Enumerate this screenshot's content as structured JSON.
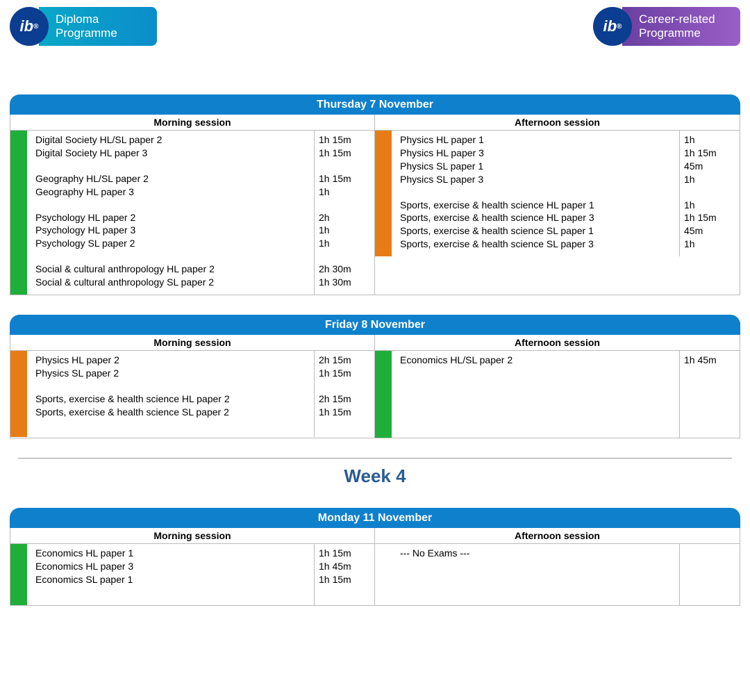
{
  "logos": {
    "dp": {
      "line1": "Diploma",
      "line2": "Programme",
      "mark": "ib"
    },
    "cp": {
      "line1": "Career-related",
      "line2": "Programme",
      "mark": "ib"
    }
  },
  "colors": {
    "header_blue": "#0f80cc",
    "stripe_green": "#1fae3a",
    "stripe_orange": "#e77c17",
    "week_title": "#2a5b93"
  },
  "labels": {
    "morning": "Morning session",
    "afternoon": "Afternoon session",
    "no_exams": "--- No Exams ---"
  },
  "week_title": "Week 4",
  "days": [
    {
      "title": "Thursday 7 November",
      "morning": {
        "stripe": "green",
        "groups": [
          [
            {
              "name": "Digital Society HL/SL paper 2",
              "dur": "1h 15m"
            },
            {
              "name": "Digital Society HL paper 3",
              "dur": "1h 15m"
            }
          ],
          [
            {
              "name": "Geography HL/SL paper 2",
              "dur": "1h 15m"
            },
            {
              "name": "Geography HL paper 3",
              "dur": "1h"
            }
          ],
          [
            {
              "name": "Psychology HL paper 2",
              "dur": "2h"
            },
            {
              "name": "Psychology HL paper 3",
              "dur": "1h"
            },
            {
              "name": "Psychology SL paper 2",
              "dur": "1h"
            }
          ],
          [
            {
              "name": "Social & cultural anthropology HL paper 2",
              "dur": "2h 30m"
            },
            {
              "name": "Social & cultural anthropology SL paper 2",
              "dur": "1h 30m"
            }
          ]
        ]
      },
      "afternoon": {
        "stripe": "orange",
        "groups": [
          [
            {
              "name": "Physics HL paper 1",
              "dur": "1h"
            },
            {
              "name": "Physics HL paper 3",
              "dur": "1h 15m"
            },
            {
              "name": "Physics SL paper 1",
              "dur": "45m"
            },
            {
              "name": "Physics SL paper 3",
              "dur": "1h"
            }
          ],
          [
            {
              "name": "Sports, exercise & health science HL paper 1",
              "dur": "1h"
            },
            {
              "name": "Sports, exercise & health science HL paper 3",
              "dur": "1h 15m"
            },
            {
              "name": "Sports, exercise & health science SL paper 1",
              "dur": "45m"
            },
            {
              "name": "Sports, exercise & health science SL paper 3",
              "dur": "1h"
            }
          ]
        ]
      }
    },
    {
      "title": "Friday 8 November",
      "morning": {
        "stripe": "orange",
        "groups": [
          [
            {
              "name": "Physics HL paper 2",
              "dur": "2h 15m"
            },
            {
              "name": "Physics SL paper 2",
              "dur": "1h 15m"
            }
          ],
          [
            {
              "name": "Sports, exercise & health science HL paper 2",
              "dur": "2h 15m"
            },
            {
              "name": "Sports, exercise & health science SL paper 2",
              "dur": "1h 15m"
            }
          ]
        ],
        "min_lines": 6
      },
      "afternoon": {
        "stripe": "green",
        "groups": [
          [
            {
              "name": "Economics HL/SL paper 2",
              "dur": "1h 45m"
            }
          ]
        ],
        "min_lines": 6
      }
    },
    {
      "title": "Monday 11 November",
      "before_separator": true,
      "morning": {
        "stripe": "green",
        "groups": [
          [
            {
              "name": "Economics HL paper 1",
              "dur": "1h 15m"
            },
            {
              "name": "Economics HL paper 3",
              "dur": "1h 45m"
            },
            {
              "name": "Economics SL paper 1",
              "dur": "1h 15m"
            }
          ]
        ],
        "min_lines": 4
      },
      "afternoon": {
        "stripe": "none",
        "no_exams": true,
        "min_lines": 4
      }
    }
  ]
}
